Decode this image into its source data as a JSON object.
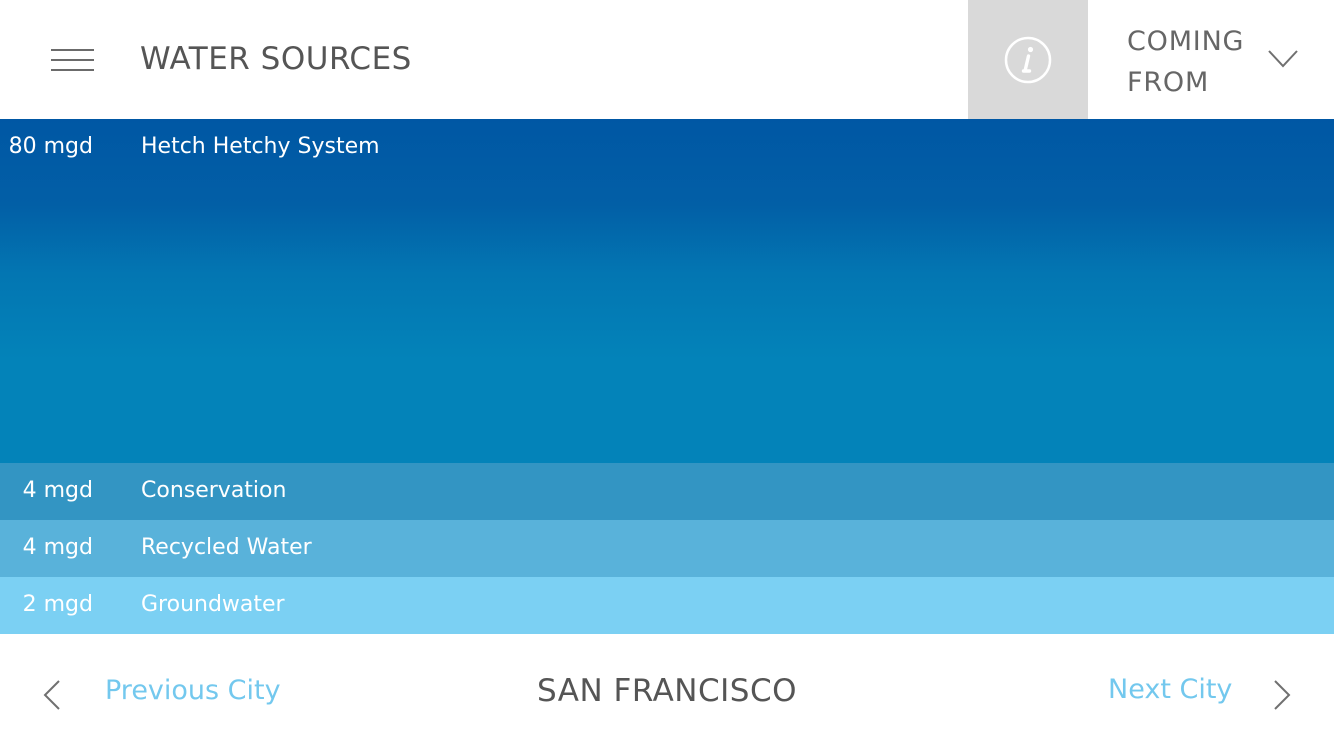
{
  "header": {
    "title": "WATER SOURCES",
    "menu_icon": "hamburger-menu-icon",
    "info_icon": "info-icon",
    "coming_from_line1": "COMING",
    "coming_from_line2": "FROM",
    "dropdown_icon": "chevron-down-icon"
  },
  "colors": {
    "row1_top": "#0057a4",
    "row1_bottom": "#0383b9",
    "row2": "#3395c3",
    "row3": "#59b2da",
    "row4": "#7bd0f3",
    "link": "#73c8ee",
    "info_bg": "#d9d9d9"
  },
  "chart_data": {
    "type": "bar",
    "categories": [
      "Hetch Hetchy System",
      "Conservation",
      "Recycled Water",
      "Groundwater"
    ],
    "values": [
      80,
      4,
      4,
      2
    ],
    "value_labels": [
      "80 mgd",
      "4 mgd",
      "4 mgd",
      "2 mgd"
    ]
  },
  "footer": {
    "prev_label": "Previous City",
    "city": "SAN FRANCISCO",
    "next_label": "Next City",
    "prev_icon": "chevron-left-icon",
    "next_icon": "chevron-right-icon"
  }
}
